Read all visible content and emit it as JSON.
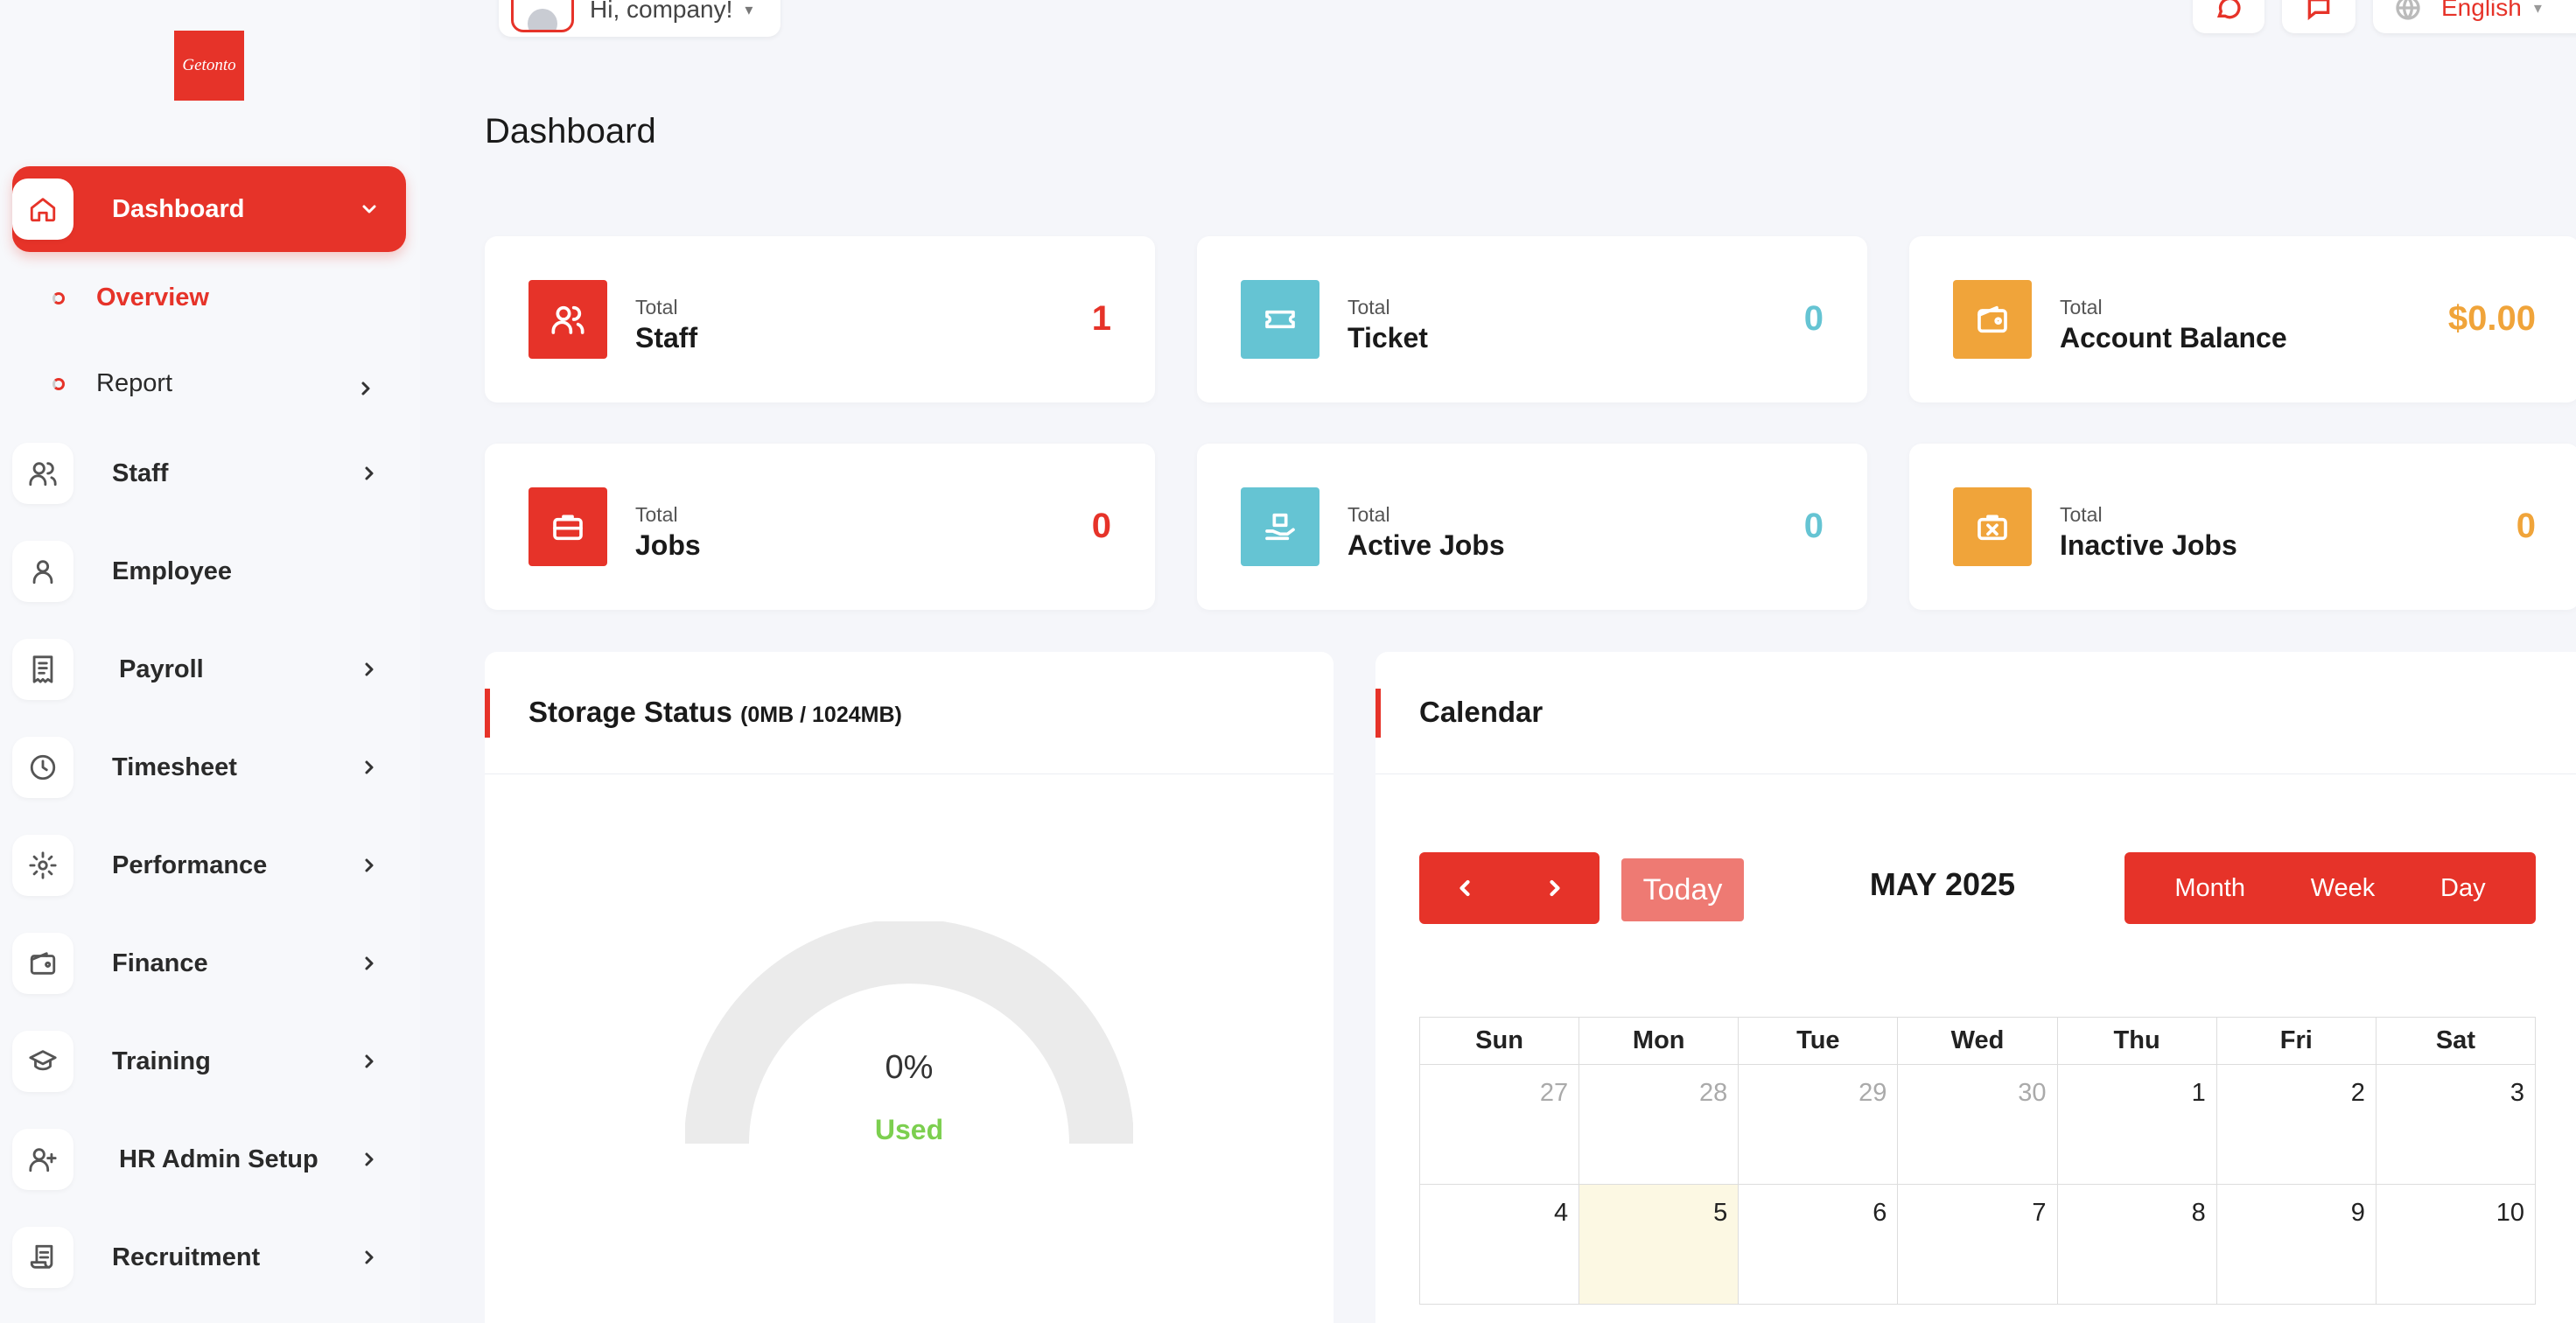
{
  "app": {
    "logo_text": "Getonto"
  },
  "header": {
    "greeting": "Hi, company!",
    "language": "English"
  },
  "page_title": "Dashboard",
  "sidebar": {
    "dashboard": "Dashboard",
    "sub": [
      "Overview",
      "Report"
    ],
    "items": [
      "Staff",
      "Employee",
      "Payroll",
      "Timesheet",
      "Performance",
      "Finance",
      "Training",
      "HR Admin Setup",
      "Recruitment"
    ]
  },
  "stats": [
    {
      "small": "Total",
      "label": "Staff",
      "value": "1",
      "color": "#e63329"
    },
    {
      "small": "Total",
      "label": "Ticket",
      "value": "0",
      "color": "#65c4d3"
    },
    {
      "small": "Total",
      "label": "Account Balance",
      "value": "$0.00",
      "color": "#f0a43a"
    },
    {
      "small": "Total",
      "label": "Jobs",
      "value": "0",
      "color": "#e63329"
    },
    {
      "small": "Total",
      "label": "Active Jobs",
      "value": "0",
      "color": "#65c4d3"
    },
    {
      "small": "Total",
      "label": "Inactive Jobs",
      "value": "0",
      "color": "#f0a43a"
    }
  ],
  "storage": {
    "title": "Storage Status",
    "detail": "(0MB / 1024MB)",
    "percent": "0%",
    "used_label": "Used",
    "used_fraction": 0
  },
  "calendar": {
    "title": "Calendar",
    "today": "Today",
    "month": "MAY 2025",
    "views": [
      "Month",
      "Week",
      "Day"
    ],
    "days": [
      "Sun",
      "Mon",
      "Tue",
      "Wed",
      "Thu",
      "Fri",
      "Sat"
    ],
    "week1": [
      "27",
      "28",
      "29",
      "30",
      "1",
      "2",
      "3"
    ],
    "week2": [
      "4",
      "5",
      "6",
      "7",
      "8",
      "9",
      "10"
    ]
  },
  "colors": {
    "accent": "#e63329",
    "teal": "#65c4d3",
    "orange": "#f0a43a",
    "used_green": "#7ccf4f"
  }
}
